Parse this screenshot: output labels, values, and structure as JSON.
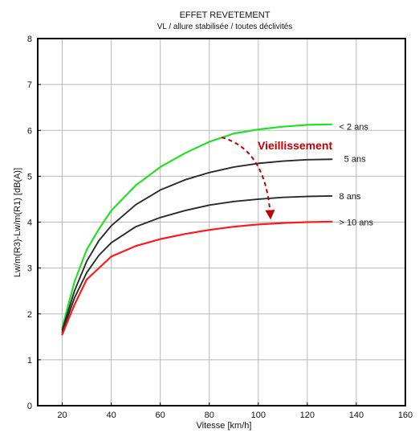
{
  "chart_data": {
    "type": "line",
    "title": "EFFET REVETEMENT",
    "subtitle": "VL / allure stabilisée / toutes déclivités",
    "xlabel": "Vitesse [km/h]",
    "ylabel": "Lw/m(R3)-Lw/m(R1) [dB(A)]",
    "xlim": [
      10,
      160
    ],
    "ylim": [
      0,
      8
    ],
    "xticks": [
      20,
      40,
      60,
      80,
      100,
      120,
      140,
      160
    ],
    "yticks": [
      0,
      1,
      2,
      3,
      4,
      5,
      6,
      7,
      8
    ],
    "grid": true,
    "legend": "none",
    "series": [
      {
        "name": "< 2 ans",
        "color": "#22e022",
        "x": [
          20,
          25,
          30,
          35,
          40,
          50,
          60,
          70,
          80,
          90,
          100,
          110,
          120,
          130
        ],
        "y": [
          1.7,
          2.7,
          3.4,
          3.85,
          4.25,
          4.8,
          5.2,
          5.5,
          5.75,
          5.93,
          6.02,
          6.08,
          6.12,
          6.13
        ]
      },
      {
        "name": "5 ans",
        "color": "#2a2a2a",
        "x": [
          20,
          25,
          30,
          35,
          40,
          50,
          60,
          70,
          80,
          90,
          100,
          110,
          120,
          130
        ],
        "y": [
          1.65,
          2.5,
          3.15,
          3.6,
          3.92,
          4.38,
          4.7,
          4.92,
          5.08,
          5.2,
          5.28,
          5.33,
          5.36,
          5.37
        ]
      },
      {
        "name": "8 ans",
        "color": "#2a2a2a",
        "x": [
          20,
          25,
          30,
          35,
          40,
          50,
          60,
          70,
          80,
          90,
          100,
          110,
          120,
          130
        ],
        "y": [
          1.6,
          2.35,
          2.9,
          3.28,
          3.55,
          3.9,
          4.1,
          4.25,
          4.37,
          4.45,
          4.5,
          4.54,
          4.56,
          4.57
        ]
      },
      {
        "name": "> 10 ans",
        "color": "#ff1a1a",
        "x": [
          20,
          25,
          30,
          35,
          40,
          50,
          60,
          70,
          80,
          90,
          100,
          110,
          120,
          130
        ],
        "y": [
          1.55,
          2.2,
          2.75,
          3.0,
          3.25,
          3.48,
          3.63,
          3.74,
          3.83,
          3.9,
          3.95,
          3.98,
          4.0,
          4.01
        ]
      }
    ],
    "annotation": {
      "text": "Vieillissement",
      "color": "#c00000"
    }
  }
}
